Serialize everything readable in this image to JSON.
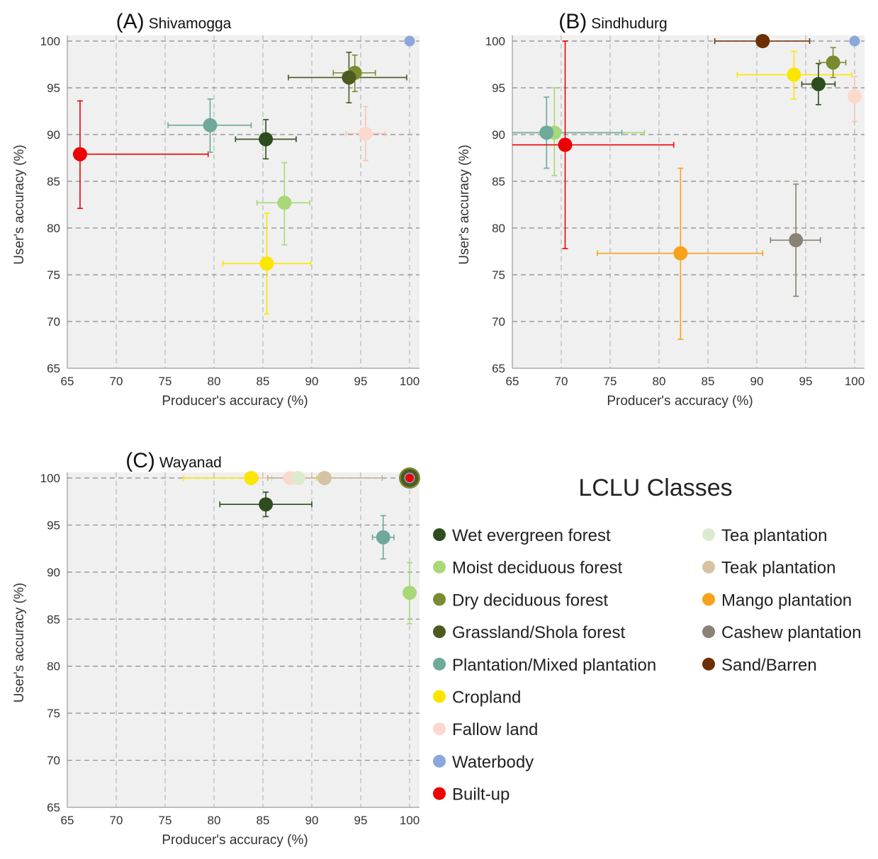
{
  "colors": {
    "wet": "#2e4d1e",
    "moist": "#a8d878",
    "dry": "#7a8a30",
    "grass": "#4c5a22",
    "plant": "#6ea99a",
    "crop": "#fbe600",
    "fallow": "#fcd9cc",
    "water": "#8aa8dc",
    "built": "#ee0000",
    "tea": "#dcebd0",
    "teak": "#d5c3a3",
    "mango": "#f7a21a",
    "cashew": "#8a8275",
    "sand": "#6b3006"
  },
  "legend": {
    "title": "LCLU Classes",
    "col1": [
      {
        "label": "Wet evergreen forest",
        "color": "#2e4d1e"
      },
      {
        "label": "Moist deciduous forest",
        "color": "#a8d878"
      },
      {
        "label": "Dry deciduous forest",
        "color": "#7a8a30"
      },
      {
        "label": "Grassland/Shola forest",
        "color": "#4c5a22"
      },
      {
        "label": "Plantation/Mixed plantation",
        "color": "#6ea99a"
      },
      {
        "label": "Cropland",
        "color": "#fbe600"
      },
      {
        "label": "Fallow land",
        "color": "#fcd9cc"
      },
      {
        "label": "Waterbody",
        "color": "#8aa8dc"
      },
      {
        "label": "Built-up",
        "color": "#ee0000"
      }
    ],
    "col2": [
      {
        "label": "Tea plantation",
        "color": "#dcebd0"
      },
      {
        "label": "Teak plantation",
        "color": "#d5c3a3"
      },
      {
        "label": "Mango plantation",
        "color": "#f7a21a"
      },
      {
        "label": "Cashew plantation",
        "color": "#8a8275"
      },
      {
        "label": "Sand/Barren",
        "color": "#6b3006"
      }
    ]
  },
  "chart_data": [
    {
      "type": "scatter",
      "panel": "(A)",
      "title": "Shivamogga",
      "xlabel": "Producer's accuracy (%)",
      "ylabel": "User's accuracy (%)",
      "xlim": [
        65,
        100
      ],
      "ylim": [
        65,
        100
      ],
      "xticks": [
        "65",
        "70",
        "75",
        "80",
        "85",
        "90",
        "95",
        "100"
      ],
      "yticks": [
        "65",
        "70",
        "75",
        "80",
        "85",
        "90",
        "95",
        "100"
      ],
      "grid": true,
      "points": [
        {
          "cls": "fallow",
          "x": 95.5,
          "y": 90.1,
          "xerr": [
            93.5,
            97.5
          ],
          "yerr": [
            87.2,
            93.0
          ]
        },
        {
          "cls": "built",
          "x": 66.3,
          "y": 87.9,
          "xerr": [
            66.3,
            79.4
          ],
          "yerr": [
            82.1,
            93.6
          ]
        },
        {
          "cls": "plant",
          "x": 79.6,
          "y": 91.0,
          "xerr": [
            75.3,
            83.8
          ],
          "yerr": [
            88.1,
            93.8
          ]
        },
        {
          "cls": "wet",
          "x": 85.3,
          "y": 89.5,
          "xerr": [
            82.2,
            88.4
          ],
          "yerr": [
            87.4,
            91.6
          ]
        },
        {
          "cls": "moist",
          "x": 87.2,
          "y": 82.7,
          "xerr": [
            84.4,
            89.8
          ],
          "yerr": [
            78.2,
            87.0
          ]
        },
        {
          "cls": "crop",
          "x": 85.4,
          "y": 76.2,
          "xerr": [
            80.9,
            89.9
          ],
          "yerr": [
            70.8,
            81.6
          ]
        },
        {
          "cls": "dry",
          "x": 94.4,
          "y": 96.6,
          "xerr": [
            92.2,
            96.5
          ],
          "yerr": [
            94.6,
            98.5
          ]
        },
        {
          "cls": "grass",
          "x": 93.8,
          "y": 96.1,
          "xerr": [
            87.6,
            99.7
          ],
          "yerr": [
            93.4,
            98.8
          ]
        },
        {
          "cls": "water",
          "x": 100.0,
          "y": 100.0,
          "xerr": null,
          "yerr": null
        }
      ]
    },
    {
      "type": "scatter",
      "panel": "(B)",
      "title": "Sindhudurg",
      "xlabel": "Producer's accuracy (%)",
      "ylabel": "User's accuracy (%)",
      "xlim": [
        65,
        100
      ],
      "ylim": [
        65,
        100
      ],
      "xticks": [
        "65",
        "70",
        "75",
        "80",
        "85",
        "90",
        "95",
        "100"
      ],
      "yticks": [
        "65",
        "70",
        "75",
        "80",
        "85",
        "90",
        "95",
        "100"
      ],
      "grid": true,
      "points": [
        {
          "cls": "fallow",
          "x": 100.0,
          "y": 94.1,
          "xerr": null,
          "yerr": [
            91.4,
            96.2
          ]
        },
        {
          "cls": "moist",
          "x": 69.3,
          "y": 90.2,
          "xerr": [
            65.0,
            78.5
          ],
          "yerr": [
            85.6,
            95.0
          ]
        },
        {
          "cls": "plant",
          "x": 68.5,
          "y": 90.2,
          "xerr": [
            65.0,
            76.2
          ],
          "yerr": [
            86.4,
            94.0
          ]
        },
        {
          "cls": "built",
          "x": 70.4,
          "y": 88.9,
          "xerr": [
            65.0,
            81.5
          ],
          "yerr": [
            77.8,
            100.0
          ]
        },
        {
          "cls": "mango",
          "x": 82.2,
          "y": 77.3,
          "xerr": [
            73.7,
            90.6
          ],
          "yerr": [
            68.1,
            86.4
          ]
        },
        {
          "cls": "cashew",
          "x": 94.0,
          "y": 78.7,
          "xerr": [
            91.4,
            96.5
          ],
          "yerr": [
            72.7,
            84.7
          ]
        },
        {
          "cls": "crop",
          "x": 93.8,
          "y": 96.4,
          "xerr": [
            88.0,
            99.7
          ],
          "yerr": [
            93.8,
            98.9
          ]
        },
        {
          "cls": "wet",
          "x": 96.3,
          "y": 95.4,
          "xerr": [
            94.6,
            98.0
          ],
          "yerr": [
            93.2,
            97.6
          ]
        },
        {
          "cls": "dry",
          "x": 97.8,
          "y": 97.7,
          "xerr": [
            96.4,
            99.1
          ],
          "yerr": [
            96.1,
            99.3
          ]
        },
        {
          "cls": "sand",
          "x": 90.6,
          "y": 100.0,
          "xerr": [
            85.7,
            95.4
          ],
          "yerr": null
        },
        {
          "cls": "water",
          "x": 100.0,
          "y": 100.0,
          "xerr": null,
          "yerr": null
        }
      ]
    },
    {
      "type": "scatter",
      "panel": "(C)",
      "title": "Wayanad",
      "xlabel": "Producer's accuracy (%)",
      "ylabel": "User's accuracy (%)",
      "xlim": [
        65,
        100
      ],
      "ylim": [
        65,
        100
      ],
      "xticks": [
        "65",
        "70",
        "75",
        "80",
        "85",
        "90",
        "95",
        "100"
      ],
      "yticks": [
        "65",
        "70",
        "75",
        "80",
        "85",
        "90",
        "95",
        "100"
      ],
      "grid": true,
      "points": [
        {
          "cls": "crop",
          "x": 83.8,
          "y": 100.0,
          "xerr": [
            76.9,
            90.5
          ],
          "yerr": null
        },
        {
          "cls": "fallow",
          "x": 87.8,
          "y": 100.0,
          "xerr": [
            84.5,
            91.0
          ],
          "yerr": null
        },
        {
          "cls": "tea",
          "x": 88.6,
          "y": 100.0,
          "xerr": [
            85.9,
            91.2
          ],
          "yerr": null
        },
        {
          "cls": "teak",
          "x": 91.3,
          "y": 100.0,
          "xerr": [
            85.5,
            97.2
          ],
          "yerr": null
        },
        {
          "cls": "wet",
          "x": 85.3,
          "y": 97.2,
          "xerr": [
            80.6,
            90.0
          ],
          "yerr": [
            95.9,
            98.5
          ]
        },
        {
          "cls": "plant",
          "x": 97.3,
          "y": 93.7,
          "xerr": [
            96.2,
            98.4
          ],
          "yerr": [
            91.4,
            96.0
          ]
        },
        {
          "cls": "moist",
          "x": 100.0,
          "y": 87.8,
          "xerr": null,
          "yerr": [
            84.5,
            91.0
          ]
        },
        {
          "cls": "dry",
          "x": 100.0,
          "y": 100.0,
          "xerr": null,
          "yerr": null,
          "big": true
        },
        {
          "cls": "grass",
          "x": 100.0,
          "y": 100.0,
          "xerr": null,
          "yerr": null,
          "big": true
        },
        {
          "cls": "water",
          "x": 100.0,
          "y": 100.0,
          "xerr": null,
          "yerr": null
        },
        {
          "cls": "built",
          "x": 100.0,
          "y": 100.0,
          "xerr": null,
          "yerr": null,
          "small": true
        }
      ]
    }
  ]
}
